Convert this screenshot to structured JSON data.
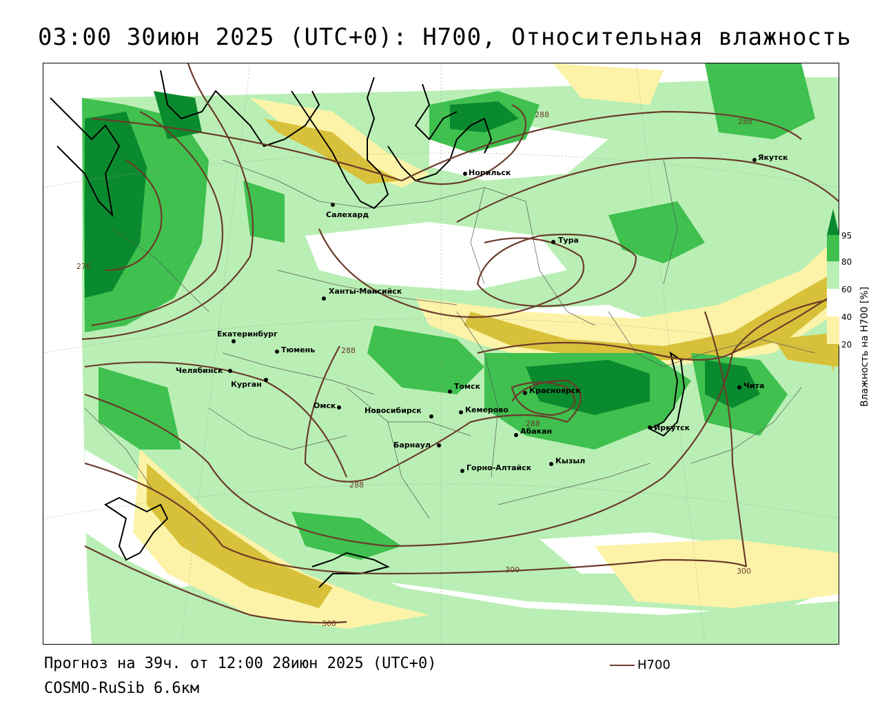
{
  "header": {
    "title": "03:00 30июн 2025 (UTC+0): H700, Относительная влажность"
  },
  "footer": {
    "forecast": "Прогноз на 39ч. от 12:00 28июн 2025 (UTC+0)",
    "model": "COSMO-RuSib 6.6км",
    "legend_line_label": "H700"
  },
  "colorbar": {
    "title": "Влажность на H700 [%]",
    "ticks": [
      "95",
      "80",
      "60",
      "40",
      "20"
    ],
    "colors": {
      "gt95": "#0a8a2e",
      "80_95": "#3fc04f",
      "60_80": "#b9efb4",
      "40_60": "#ffffff",
      "20_40": "#fcf3a8",
      "lt20": "#d8c13a"
    }
  },
  "map": {
    "colors": {
      "contour": "#6b3b2a",
      "coast": "#000000",
      "border": "#555555"
    },
    "cities": [
      {
        "name": "Норильск",
        "key": "norilsk"
      },
      {
        "name": "Якутск",
        "key": "yakutsk"
      },
      {
        "name": "Салехард",
        "key": "salekhard"
      },
      {
        "name": "Тура",
        "key": "tura"
      },
      {
        "name": "Ханты-Мансийск",
        "key": "khanty"
      },
      {
        "name": "Екатеринбург",
        "key": "ekb"
      },
      {
        "name": "Тюмень",
        "key": "tyumen"
      },
      {
        "name": "Челябинск",
        "key": "chelyabinsk"
      },
      {
        "name": "Курган",
        "key": "kurgan"
      },
      {
        "name": "Омск",
        "key": "omsk"
      },
      {
        "name": "Новосибирск",
        "key": "novosibirsk"
      },
      {
        "name": "Томск",
        "key": "tomsk"
      },
      {
        "name": "Кемерово",
        "key": "kemerovo"
      },
      {
        "name": "Красноярск",
        "key": "krasnoyarsk"
      },
      {
        "name": "Барнаул",
        "key": "barnaul"
      },
      {
        "name": "Абакан",
        "key": "abakan"
      },
      {
        "name": "Иркутск",
        "key": "irkutsk"
      },
      {
        "name": "Чита",
        "key": "chita"
      },
      {
        "name": "Кызыл",
        "key": "kyzyl"
      },
      {
        "name": "Горно-Алтайск",
        "key": "gorno"
      }
    ],
    "contour_labels": [
      "288",
      "288",
      "276",
      "288",
      "288",
      "288",
      "300",
      "300",
      "300"
    ]
  }
}
